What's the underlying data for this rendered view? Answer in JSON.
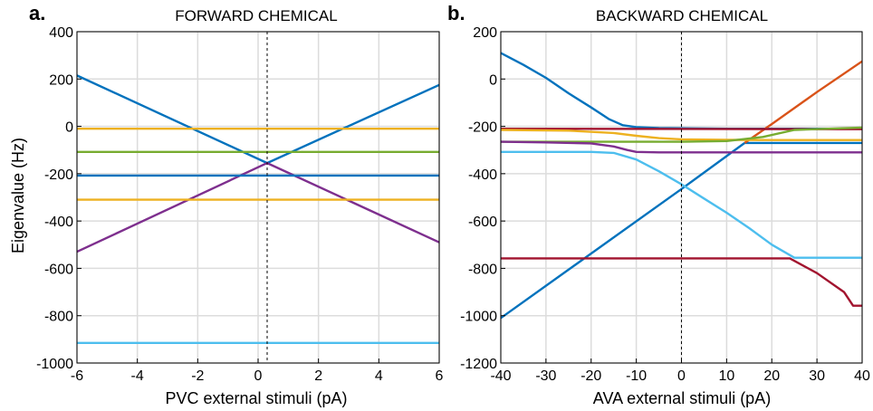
{
  "figure": {
    "ylabel": "Eigenvalue (Hz)"
  },
  "chart_data": [
    {
      "type": "line",
      "panel_label": "a.",
      "title": "FORWARD CHEMICAL",
      "xlabel": "PVC external stimuli (pA)",
      "ylabel": "Eigenvalue (Hz)",
      "xlim": [
        -6,
        6
      ],
      "ylim": [
        -1000,
        400
      ],
      "xticks": [
        "-6",
        "-4",
        "-2",
        "0",
        "2",
        "4",
        "6"
      ],
      "yticks": [
        "400",
        "200",
        "0",
        "-200",
        "-400",
        "-600",
        "-800",
        "-1000"
      ],
      "grid": true,
      "vline_x": 0.3,
      "series": [
        {
          "color": "#0072BD",
          "x": [
            -6,
            0.3,
            6
          ],
          "y": [
            215,
            -155,
            175
          ]
        },
        {
          "color": "#7E2F8E",
          "x": [
            -6,
            0.3,
            6
          ],
          "y": [
            -530,
            -155,
            -490
          ]
        },
        {
          "color": "#EDB120",
          "x": [
            -6,
            6
          ],
          "y": [
            -10,
            -10
          ]
        },
        {
          "color": "#77AC30",
          "x": [
            -6,
            6
          ],
          "y": [
            -108,
            -108
          ]
        },
        {
          "color": "#0072BD",
          "x": [
            -6,
            6
          ],
          "y": [
            -208,
            -208
          ]
        },
        {
          "color": "#EDB120",
          "x": [
            -6,
            6
          ],
          "y": [
            -310,
            -310
          ]
        },
        {
          "color": "#4DBEEE",
          "x": [
            -6,
            6
          ],
          "y": [
            -915,
            -915
          ]
        }
      ]
    },
    {
      "type": "line",
      "panel_label": "b.",
      "title": "BACKWARD CHEMICAL",
      "xlabel": "AVA external stimuli (pA)",
      "xlim": [
        -40,
        40
      ],
      "ylim": [
        -1200,
        200
      ],
      "xticks": [
        "-40",
        "-30",
        "-20",
        "-10",
        "0",
        "10",
        "20",
        "30",
        "40"
      ],
      "yticks": [
        "200",
        "0",
        "-200",
        "-400",
        "-600",
        "-800",
        "-1000",
        "-1200"
      ],
      "grid": true,
      "vline_x": 0,
      "series": [
        {
          "color": "#0072BD",
          "x": [
            -40,
            -35,
            -30,
            -25,
            -20,
            -16,
            -13,
            -10,
            -5,
            0,
            10,
            20,
            30,
            40
          ],
          "y": [
            110,
            60,
            5,
            -60,
            -120,
            -170,
            -195,
            -203,
            -207,
            -208,
            -210,
            -210,
            -210,
            -210
          ]
        },
        {
          "color": "#0072BD",
          "x": [
            -40,
            0,
            14
          ],
          "y": [
            -1010,
            -465,
            -270
          ]
        },
        {
          "color": "#0072BD",
          "x": [
            14,
            40
          ],
          "y": [
            -270,
            -270
          ]
        },
        {
          "color": "#D95319",
          "x": [
            14,
            20,
            30,
            40
          ],
          "y": [
            -270,
            -190,
            -55,
            75
          ]
        },
        {
          "color": "#A2142F",
          "x": [
            -40,
            40
          ],
          "y": [
            -210,
            -212
          ]
        },
        {
          "color": "#EDB120",
          "x": [
            -40,
            -25,
            -15,
            -10,
            -5,
            0,
            10,
            20,
            30,
            40
          ],
          "y": [
            -215,
            -218,
            -228,
            -240,
            -250,
            -255,
            -257,
            -258,
            -258,
            -258
          ]
        },
        {
          "color": "#77AC30",
          "x": [
            -40,
            -30,
            -20,
            -10,
            0,
            10,
            18,
            25,
            40
          ],
          "y": [
            -265,
            -265,
            -265,
            -265,
            -265,
            -262,
            -245,
            -215,
            -205
          ]
        },
        {
          "color": "#7E2F8E",
          "x": [
            -40,
            -30,
            -20,
            -15,
            -12,
            -10,
            -5,
            0,
            10,
            40
          ],
          "y": [
            -265,
            -268,
            -272,
            -285,
            -300,
            -308,
            -310,
            -310,
            -310,
            -310
          ]
        },
        {
          "color": "#4DBEEE",
          "x": [
            -40,
            -20,
            -15,
            -10,
            -5,
            0,
            5,
            10,
            15,
            20,
            25,
            40
          ],
          "y": [
            -308,
            -308,
            -312,
            -340,
            -390,
            -445,
            -505,
            -565,
            -630,
            -700,
            -755,
            -755
          ]
        },
        {
          "color": "#A2142F",
          "x": [
            -40,
            24,
            30,
            36,
            38,
            40
          ],
          "y": [
            -758,
            -758,
            -820,
            -900,
            -958,
            -958
          ]
        }
      ]
    }
  ]
}
